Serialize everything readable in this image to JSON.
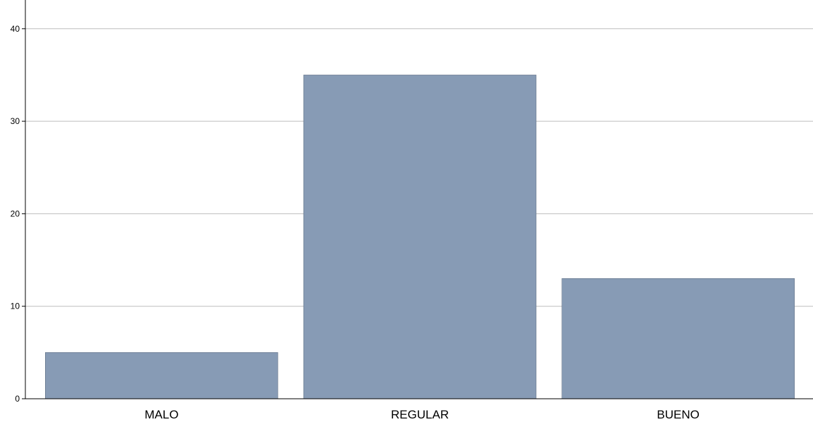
{
  "chart_data": {
    "type": "bar",
    "categories": [
      "MALO",
      "REGULAR",
      "BUENO"
    ],
    "values": [
      5,
      35,
      13
    ],
    "title": "",
    "xlabel": "",
    "ylabel": "",
    "ylim": [
      0,
      42
    ],
    "yticks": [
      0,
      10,
      20,
      30,
      40
    ],
    "grid": true,
    "legend": "none",
    "bar_color": "#879bb5",
    "bar_edge_color": "#5f6f84",
    "grid_color": "#bdbdbd",
    "axis_color": "#000000"
  }
}
